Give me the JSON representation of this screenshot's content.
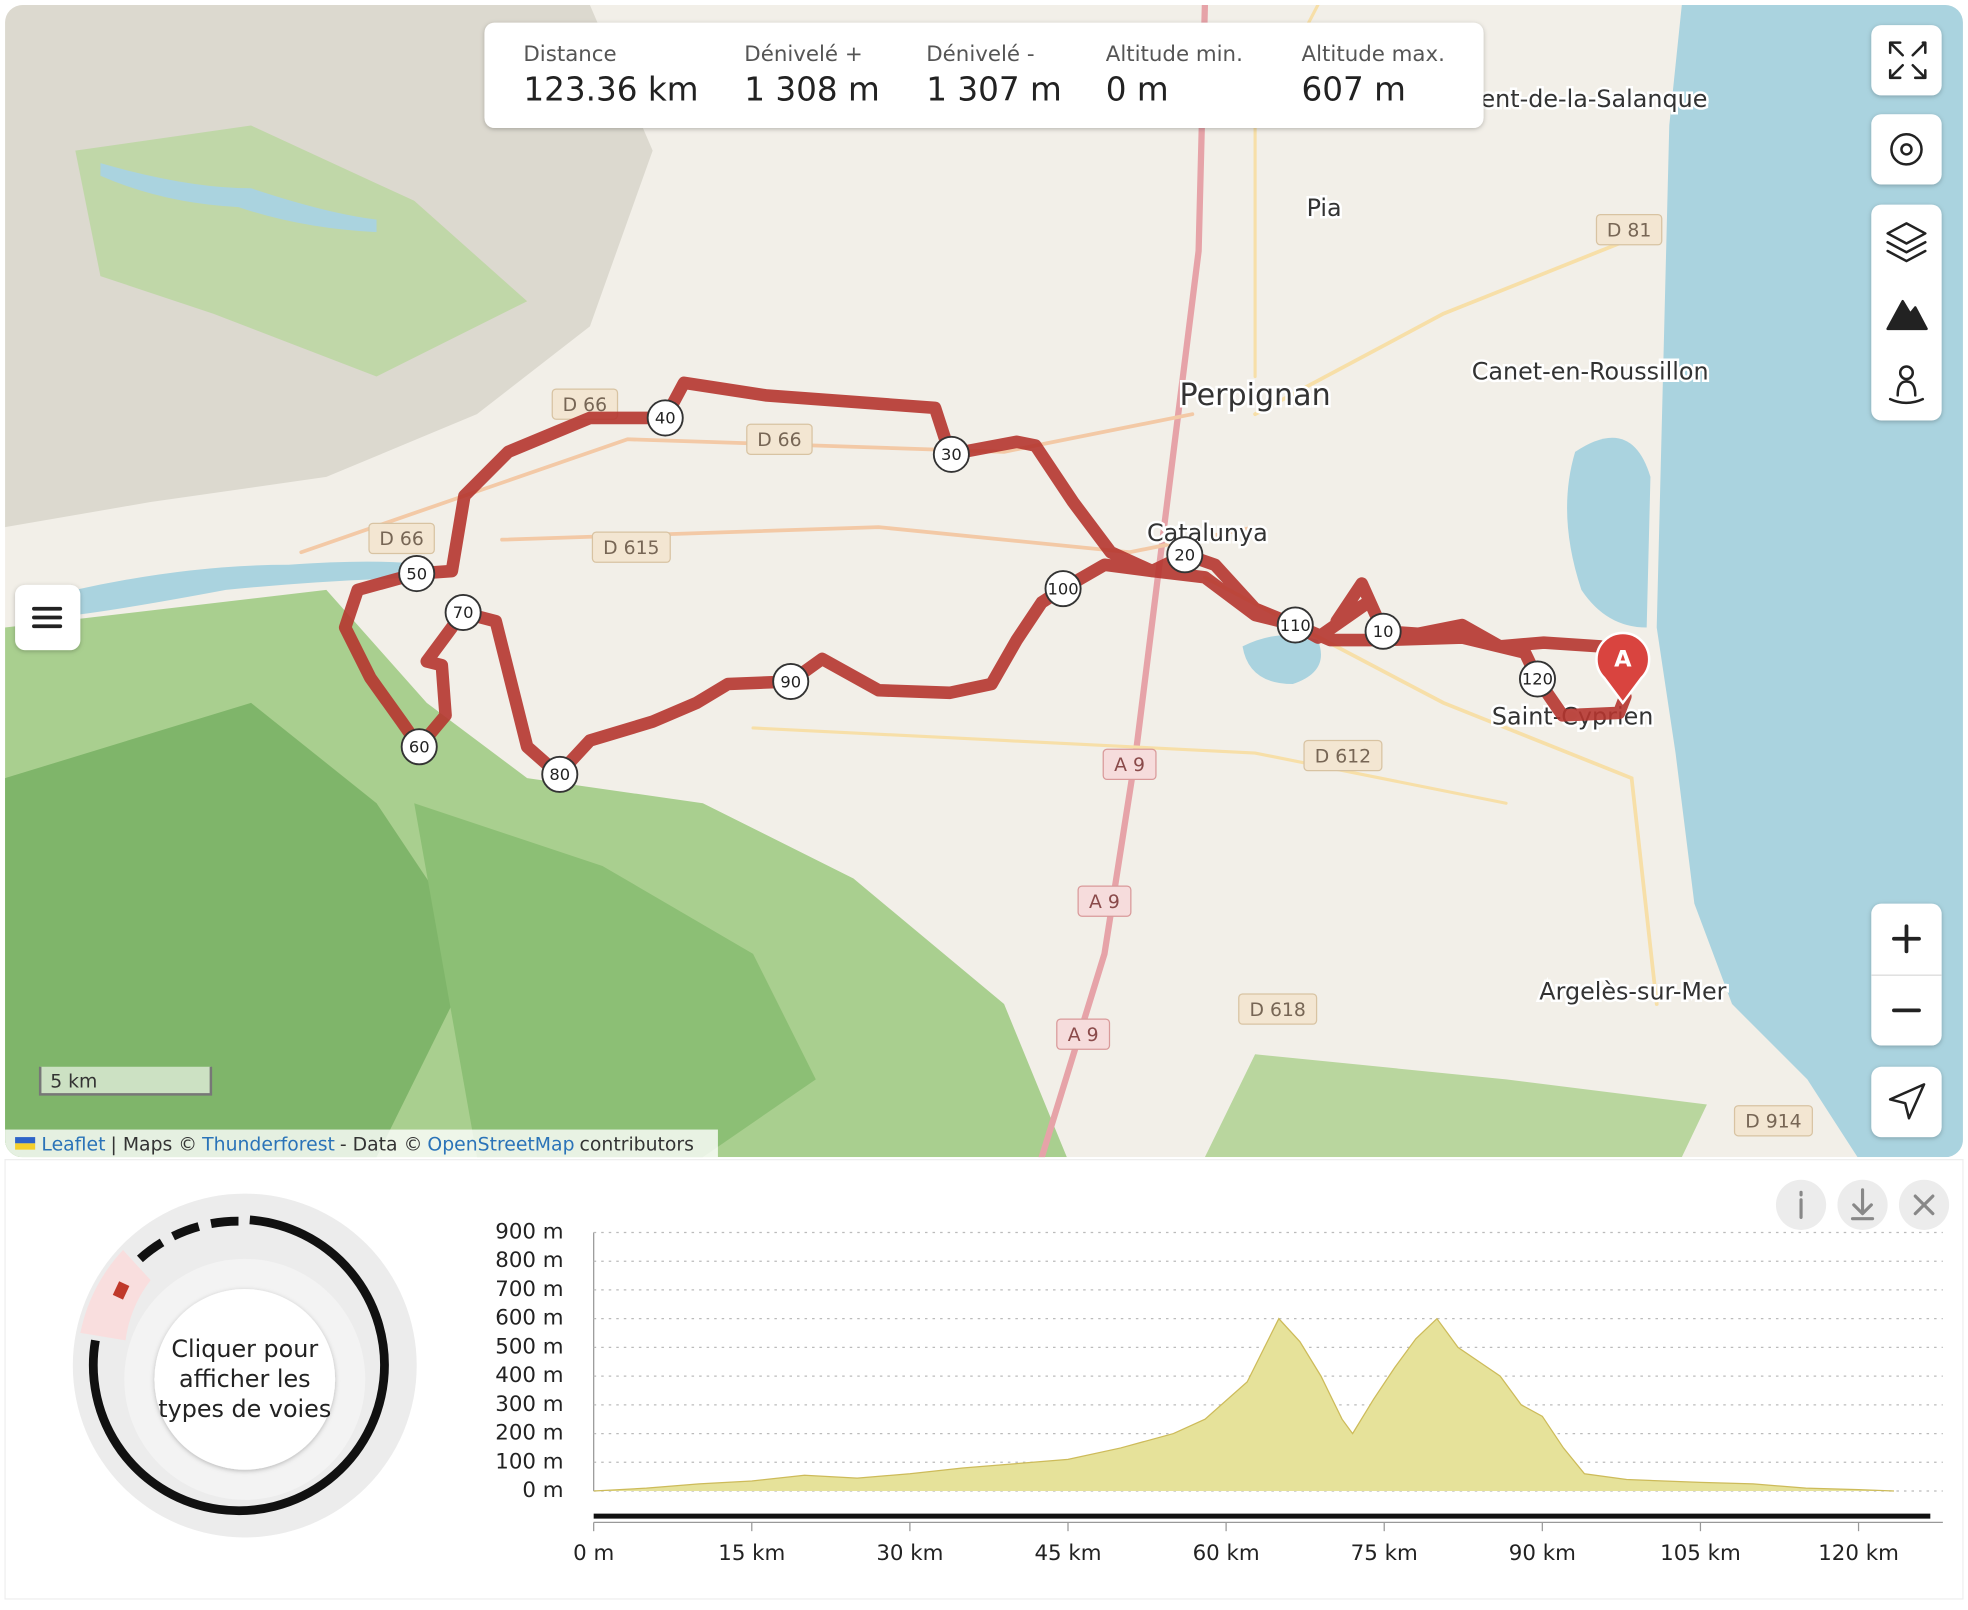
{
  "stats": [
    {
      "label": "Distance",
      "value": "123.36 km"
    },
    {
      "label": "Dénivelé +",
      "value": "1 308 m"
    },
    {
      "label": "Dénivelé -",
      "value": "1 307 m"
    },
    {
      "label": "Altitude min.",
      "value": "0 m"
    },
    {
      "label": "Altitude max.",
      "value": "607 m"
    }
  ],
  "map": {
    "places": [
      "ent-de-la-Salanque",
      "Pia",
      "Perpignan",
      "Canet-en-Roussillon",
      "Catalunya",
      "Saint-Cyprien",
      "Argelès-sur-Mer"
    ],
    "roads": [
      "D 81",
      "D 66",
      "D 66",
      "D 66",
      "D 615",
      "A 9",
      "D 612",
      "A 9",
      "D 618",
      "A 9",
      "D 914"
    ],
    "km_markers": [
      "10",
      "20",
      "30",
      "40",
      "50",
      "60",
      "70",
      "80",
      "90",
      "100",
      "110",
      "120"
    ],
    "start_marker": "A",
    "scale": "5 km",
    "attribution": [
      "Leaflet",
      "| Maps ©",
      "Thunderforest",
      "- Data ©",
      "OpenStreetMap",
      "contributors"
    ]
  },
  "road_types": {
    "prompt": [
      "Cliquer pour",
      "afficher les",
      "types de voies"
    ]
  },
  "elevation_chart": {
    "type": "area",
    "color": "#e6e29a",
    "x": [
      0,
      5,
      10,
      15,
      20,
      25,
      30,
      35,
      40,
      45,
      50,
      55,
      58,
      62,
      65,
      67,
      69,
      71,
      72,
      74,
      76,
      78,
      80,
      82,
      84,
      86,
      88,
      90,
      92,
      94,
      98,
      105,
      110,
      115,
      120,
      123.36
    ],
    "values": [
      0,
      10,
      25,
      35,
      55,
      45,
      60,
      80,
      95,
      110,
      150,
      200,
      250,
      380,
      600,
      520,
      400,
      250,
      200,
      320,
      430,
      530,
      600,
      500,
      450,
      400,
      300,
      260,
      150,
      60,
      40,
      30,
      25,
      10,
      5,
      0
    ],
    "xlim": [
      0,
      128
    ],
    "ylim": [
      0,
      900
    ],
    "xticks": [
      {
        "value": 0,
        "label": "0 m"
      },
      {
        "value": 15,
        "label": "15 km"
      },
      {
        "value": 30,
        "label": "30 km"
      },
      {
        "value": 45,
        "label": "45 km"
      },
      {
        "value": 60,
        "label": "60 km"
      },
      {
        "value": 75,
        "label": "75 km"
      },
      {
        "value": 90,
        "label": "90 km"
      },
      {
        "value": 105,
        "label": "105 km"
      },
      {
        "value": 120,
        "label": "120 km"
      }
    ],
    "yticks": [
      {
        "value": 0,
        "label": "0 m"
      },
      {
        "value": 100,
        "label": "100 m"
      },
      {
        "value": 200,
        "label": "200 m"
      },
      {
        "value": 300,
        "label": "300 m"
      },
      {
        "value": 400,
        "label": "400 m"
      },
      {
        "value": 500,
        "label": "500 m"
      },
      {
        "value": 600,
        "label": "600 m"
      },
      {
        "value": 700,
        "label": "700 m"
      },
      {
        "value": 800,
        "label": "800 m"
      },
      {
        "value": 900,
        "label": "900 m"
      }
    ],
    "grid": true
  }
}
